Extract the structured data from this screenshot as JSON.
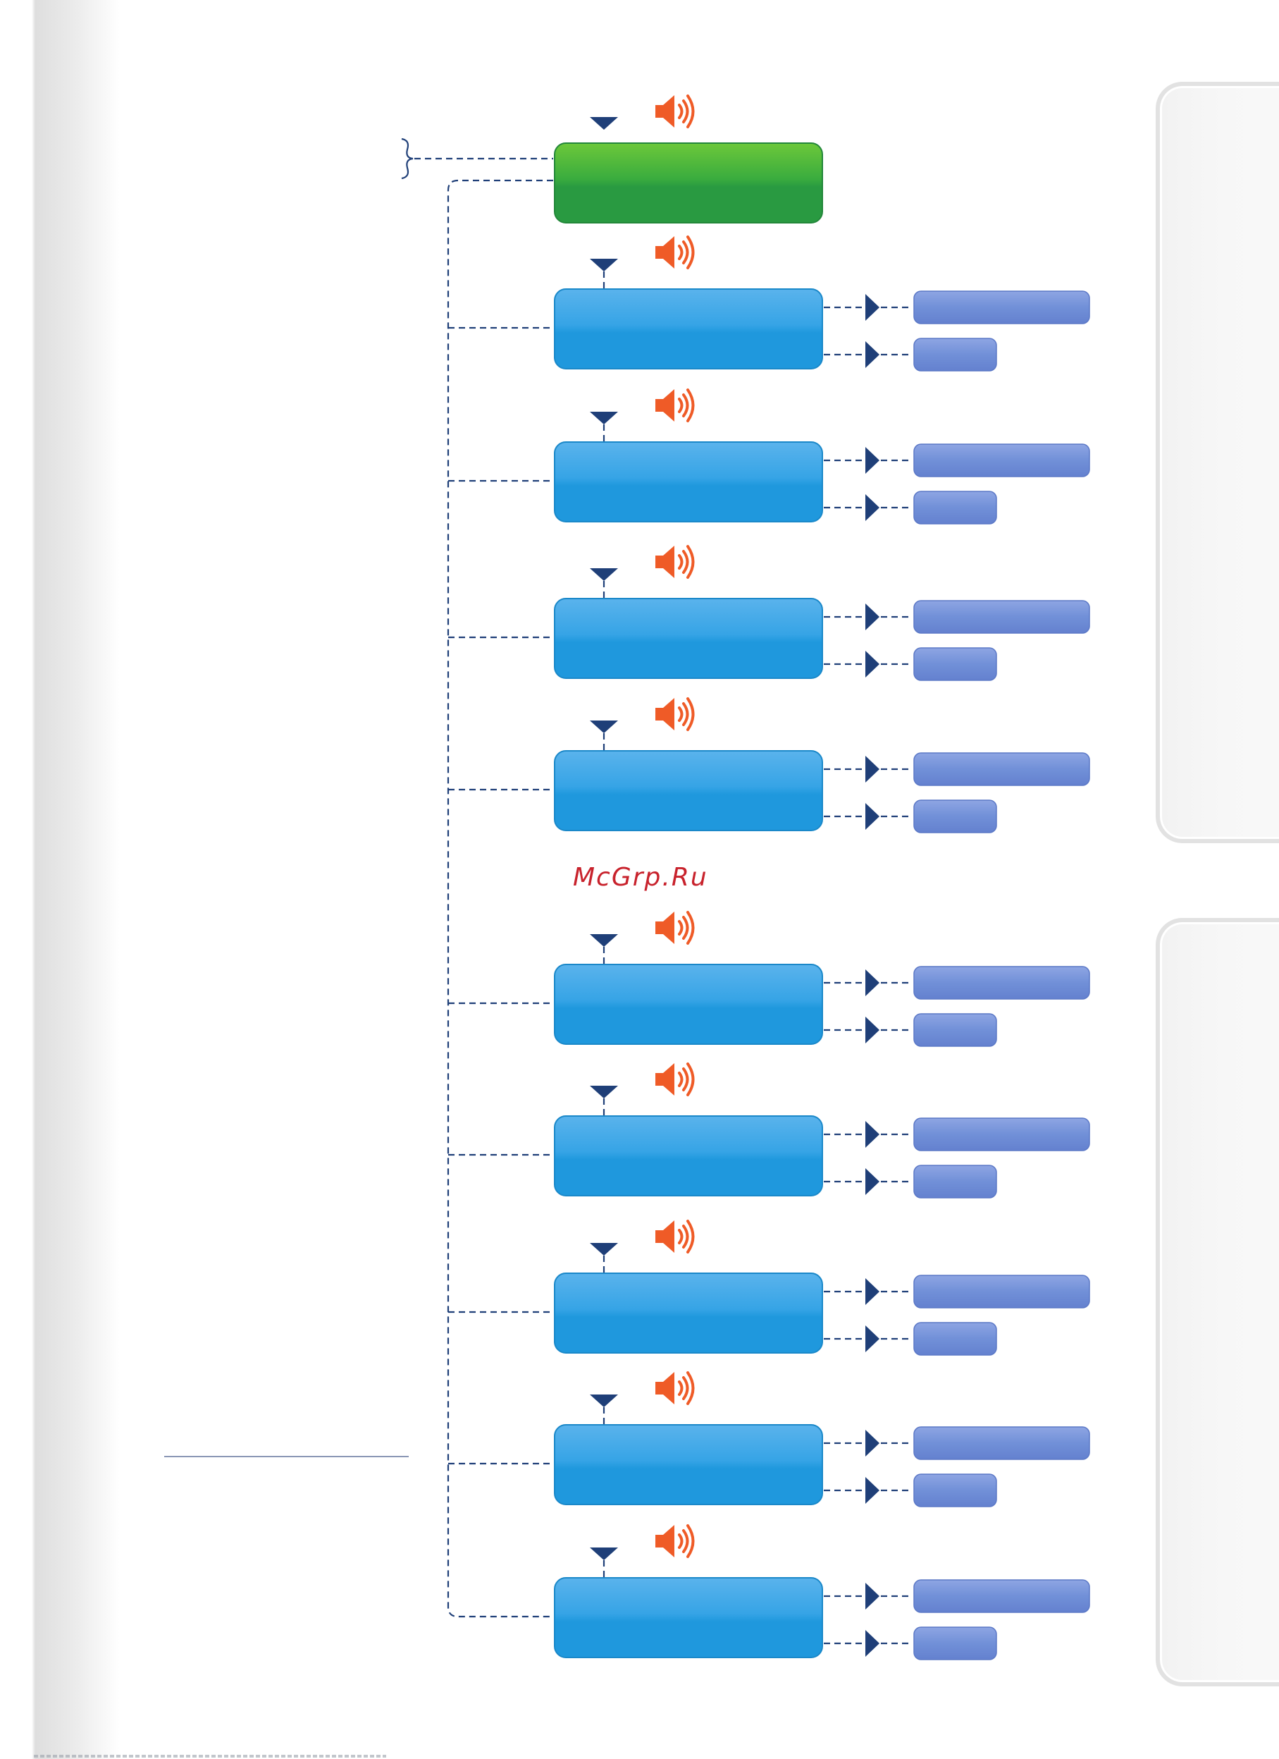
{
  "watermark": {
    "text": "McGrp.Ru"
  },
  "colors": {
    "start_box_top": "#6cc83a",
    "start_box_bottom": "#299a41",
    "step_box_top": "#5ab3ec",
    "step_box_bottom": "#1f98dd",
    "option_bar_top": "#8ea5e3",
    "option_bar_bottom": "#6481cf",
    "arrow": "#1f3f78",
    "dashed_line": "#1f3f78",
    "speaker": "#ef5b27",
    "tab_border": "#e2e2e2"
  },
  "icons": {
    "step_marker": "triangle-down-icon",
    "speaker": "speaker-icon",
    "option_marker": "triangle-right-icon",
    "brace": "brace-icon"
  },
  "flow": {
    "start": {
      "label": "",
      "color_role": "start"
    },
    "steps": [
      {
        "label": "",
        "options": [
          "",
          ""
        ]
      },
      {
        "label": "",
        "options": [
          "",
          ""
        ]
      },
      {
        "label": "",
        "options": [
          "",
          ""
        ]
      },
      {
        "label": "",
        "options": [
          "",
          ""
        ]
      },
      {
        "label": "",
        "options": [
          "",
          ""
        ]
      },
      {
        "label": "",
        "options": [
          "",
          ""
        ]
      },
      {
        "label": "",
        "options": [
          "",
          ""
        ]
      },
      {
        "label": "",
        "options": [
          "",
          ""
        ]
      },
      {
        "label": "",
        "options": [
          "",
          ""
        ]
      }
    ]
  }
}
